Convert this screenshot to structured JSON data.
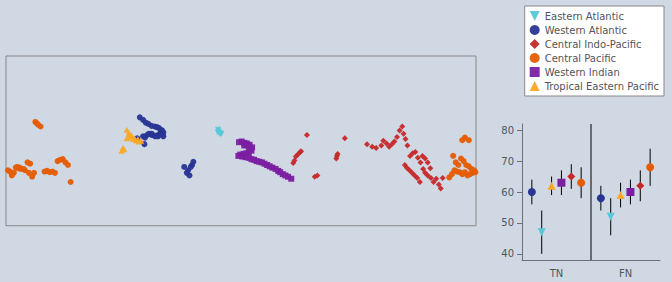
{
  "chart_data": [
    {
      "type": "scatter",
      "xlim": [
        -180,
        180
      ],
      "ylim": [
        -58,
        72
      ],
      "tick_labels": false,
      "grid": false,
      "legend": "upper right",
      "series": [
        {
          "name": "Eastern Atlantic",
          "color": "#56c8d8",
          "marker": "triangle_down",
          "values": [
            [
              -17.5,
              15.5
            ],
            [
              -17.0,
              14.0
            ],
            [
              -16.5,
              13.0
            ],
            [
              -16.0,
              12.0
            ],
            [
              -17.8,
              13.5
            ],
            [
              -15.0,
              12.5
            ]
          ]
        },
        {
          "name": "Western Atlantic",
          "color": "#283593",
          "marker": "circle",
          "values": [
            [
              -77.5,
              25.0
            ],
            [
              -75.0,
              23.0
            ],
            [
              -73.0,
              21.0
            ],
            [
              -71.0,
              20.0
            ],
            [
              -68.5,
              18.5
            ],
            [
              -66.0,
              18.0
            ],
            [
              -64.5,
              17.5
            ],
            [
              -63.0,
              17.0
            ],
            [
              -61.5,
              15.5
            ],
            [
              -60.5,
              15.0
            ],
            [
              -59.5,
              13.5
            ],
            [
              -75.0,
              10.5
            ],
            [
              -73.5,
              9.5
            ],
            [
              -72.0,
              11.5
            ],
            [
              -70.5,
              12.5
            ],
            [
              -68.5,
              11.5
            ],
            [
              -66.5,
              11.0
            ],
            [
              -64.5,
              11.0
            ],
            [
              -63.5,
              10.5
            ],
            [
              -62.5,
              12.0
            ],
            [
              -61.5,
              13.5
            ],
            [
              -60.0,
              12.0
            ],
            [
              -59.5,
              10.5
            ],
            [
              -43.5,
              -13.0
            ],
            [
              -40.5,
              -15.5
            ],
            [
              -41.5,
              -17.5
            ],
            [
              -39.5,
              -19.5
            ],
            [
              -38.5,
              -13.0
            ],
            [
              -37.5,
              -11.5
            ],
            [
              -36.5,
              -9.0
            ],
            [
              -79.5,
              9.0
            ],
            [
              -74.0,
              4.5
            ],
            [
              -68.5,
              12.5
            ],
            [
              -65.5,
              10.5
            ]
          ]
        },
        {
          "name": "Central Indo-Pacific",
          "color": "#c62828",
          "marker": "diamond",
          "values": [
            [
              40.0,
              -10.0
            ],
            [
              41.0,
              -8.0
            ],
            [
              42.0,
              -5.0
            ],
            [
              43.5,
              -3.5
            ],
            [
              45.0,
              -2.0
            ],
            [
              46.0,
              -1.0
            ],
            [
              50.5,
              11.5
            ],
            [
              56.5,
              -20.5
            ],
            [
              58.5,
              -19.5
            ],
            [
              73.0,
              -6.5
            ],
            [
              73.5,
              -4.5
            ],
            [
              74.0,
              -3.0
            ],
            [
              79.5,
              9.0
            ],
            [
              96.5,
              4.5
            ],
            [
              100.5,
              2.5
            ],
            [
              103.5,
              1.5
            ],
            [
              107.5,
              3.5
            ],
            [
              109.0,
              7.0
            ],
            [
              111.5,
              5.0
            ],
            [
              113.5,
              2.5
            ],
            [
              115.5,
              4.5
            ],
            [
              117.5,
              6.5
            ],
            [
              119.5,
              10.0
            ],
            [
              121.5,
              15.0
            ],
            [
              123.5,
              18.0
            ],
            [
              124.5,
              12.5
            ],
            [
              126.0,
              8.5
            ],
            [
              127.5,
              3.5
            ],
            [
              129.5,
              -4.5
            ],
            [
              131.5,
              -2.5
            ],
            [
              133.5,
              -1.5
            ],
            [
              135.5,
              -6.0
            ],
            [
              137.5,
              -9.5
            ],
            [
              139.5,
              -14.5
            ],
            [
              141.0,
              -17.5
            ],
            [
              143.0,
              -19.5
            ],
            [
              145.5,
              -21.5
            ],
            [
              147.5,
              -24.5
            ],
            [
              149.5,
              -22.0
            ],
            [
              151.5,
              -26.5
            ],
            [
              153.0,
              -29.5
            ],
            [
              154.5,
              -21.5
            ],
            [
              145.0,
              -14.0
            ],
            [
              143.0,
              -9.5
            ],
            [
              141.0,
              -6.5
            ],
            [
              139.0,
              -4.5
            ],
            [
              125.5,
              -11.5
            ],
            [
              127.0,
              -13.5
            ],
            [
              129.0,
              -15.5
            ],
            [
              131.0,
              -17.5
            ],
            [
              133.0,
              -19.5
            ],
            [
              135.0,
              -21.5
            ],
            [
              137.0,
              -24.5
            ]
          ]
        },
        {
          "name": "Central Pacific",
          "color": "#e65c00",
          "marker": "circle",
          "values": [
            [
              159.5,
              -21.0
            ],
            [
              161.5,
              -18.5
            ],
            [
              163.5,
              -15.5
            ],
            [
              165.5,
              -16.5
            ],
            [
              167.5,
              -17.0
            ],
            [
              169.5,
              -18.5
            ],
            [
              171.5,
              -17.0
            ],
            [
              173.5,
              -19.5
            ],
            [
              175.5,
              -18.5
            ],
            [
              177.5,
              -17.5
            ],
            [
              179.5,
              -17.0
            ],
            [
              -178.5,
              -15.5
            ],
            [
              -175.5,
              -19.5
            ],
            [
              -172.5,
              -13.5
            ],
            [
              -170.5,
              -14.0
            ],
            [
              -168.5,
              -14.5
            ],
            [
              -165.5,
              -15.5
            ],
            [
              -162.5,
              -17.5
            ],
            [
              -160.0,
              -20.5
            ],
            [
              -158.5,
              -17.5
            ],
            [
              -156.5,
              20.5
            ],
            [
              -157.5,
              21.5
            ],
            [
              -155.5,
              19.5
            ],
            [
              -153.5,
              18.0
            ],
            [
              -150.5,
              -16.5
            ],
            [
              -148.5,
              -16.0
            ],
            [
              -146.5,
              -17.0
            ],
            [
              -144.5,
              -16.5
            ],
            [
              -142.5,
              -17.5
            ],
            [
              -140.5,
              -8.5
            ],
            [
              -138.5,
              -7.5
            ],
            [
              -136.5,
              -7.0
            ],
            [
              -134.5,
              -9.5
            ],
            [
              -132.5,
              -11.5
            ],
            [
              -130.5,
              -24.5
            ],
            [
              164.5,
              -9.5
            ],
            [
              166.5,
              -11.5
            ],
            [
              168.5,
              -6.5
            ],
            [
              170.5,
              -8.5
            ],
            [
              172.5,
              -11.5
            ],
            [
              174.5,
              -12.5
            ],
            [
              176.5,
              -14.5
            ],
            [
              178.5,
              -15.5
            ],
            [
              -177.0,
              -16.5
            ],
            [
              -174.0,
              -17.5
            ],
            [
              -171.5,
              -13.0
            ],
            [
              -169.5,
              -13.5
            ],
            [
              -166.5,
              -14.5
            ],
            [
              -163.5,
              -9.5
            ],
            [
              -161.5,
              -10.5
            ],
            [
              162.5,
              -4.5
            ],
            [
              169.5,
              7.5
            ],
            [
              171.5,
              9.5
            ],
            [
              174.5,
              7.5
            ]
          ]
        },
        {
          "name": "Western Indian",
          "color": "#7b1fa2",
          "marker": "square",
          "values": [
            [
              -1.5,
              6.0
            ],
            [
              0.5,
              6.5
            ],
            [
              2.5,
              5.5
            ],
            [
              4.5,
              5.0
            ],
            [
              6.5,
              4.0
            ],
            [
              2.5,
              3.5
            ],
            [
              4.5,
              3.5
            ],
            [
              6.5,
              2.5
            ],
            [
              8.5,
              2.0
            ],
            [
              8.0,
              -0.5
            ],
            [
              6.0,
              -1.5
            ],
            [
              4.0,
              -2.5
            ],
            [
              2.0,
              -3.0
            ],
            [
              -0.5,
              -3.5
            ],
            [
              -2.0,
              -4.5
            ],
            [
              1.0,
              -5.0
            ],
            [
              3.5,
              -5.5
            ],
            [
              6.0,
              -6.0
            ],
            [
              8.0,
              -7.0
            ],
            [
              10.0,
              -7.5
            ],
            [
              12.0,
              -8.5
            ],
            [
              14.0,
              -9.0
            ],
            [
              16.0,
              -9.5
            ],
            [
              18.0,
              -10.5
            ],
            [
              20.0,
              -11.5
            ],
            [
              22.0,
              -12.5
            ],
            [
              24.0,
              -13.5
            ],
            [
              26.5,
              -14.5
            ],
            [
              28.5,
              -16.0
            ],
            [
              30.0,
              -17.0
            ],
            [
              32.0,
              -18.5
            ],
            [
              34.0,
              -19.5
            ],
            [
              36.0,
              -20.5
            ],
            [
              38.5,
              -22.0
            ]
          ]
        },
        {
          "name": "Tropical Eastern Pacific",
          "color": "#f9a825",
          "marker": "triangle",
          "values": [
            [
              -87.5,
              15.5
            ],
            [
              -86.0,
              13.5
            ],
            [
              -84.0,
              11.5
            ],
            [
              -81.5,
              9.0
            ],
            [
              -79.0,
              8.5
            ],
            [
              -76.5,
              7.0
            ],
            [
              -85.5,
              12.0
            ],
            [
              -84.5,
              10.5
            ],
            [
              -82.5,
              8.5
            ],
            [
              -80.5,
              7.5
            ],
            [
              -78.5,
              6.5
            ],
            [
              -87.5,
              9.0
            ],
            [
              -85.0,
              9.5
            ],
            [
              -89.5,
              0.5
            ],
            [
              -91.5,
              -0.5
            ],
            [
              -90.5,
              1.5
            ]
          ]
        }
      ]
    },
    {
      "type": "errorbar",
      "categories": [
        "TN",
        "FN"
      ],
      "ylim": [
        38,
        82
      ],
      "yticks": [
        40,
        50,
        60,
        70,
        80
      ],
      "grid": false,
      "series": [
        {
          "color": "#283593",
          "marker": "circle",
          "values": [
            60,
            58
          ],
          "errors": [
            4,
            4
          ]
        },
        {
          "color": "#56c8d8",
          "marker": "triangle_down",
          "values": [
            47,
            52
          ],
          "errors": [
            7,
            6
          ]
        },
        {
          "color": "#f9a825",
          "marker": "triangle",
          "values": [
            62,
            59
          ],
          "errors": [
            3,
            4
          ]
        },
        {
          "color": "#7b1fa2",
          "marker": "square",
          "values": [
            63,
            60
          ],
          "errors": [
            4,
            4
          ]
        },
        {
          "color": "#c62828",
          "marker": "diamond",
          "values": [
            65,
            62
          ],
          "errors": [
            4,
            5
          ]
        },
        {
          "color": "#e65c00",
          "marker": "circle",
          "values": [
            63,
            68
          ],
          "errors": [
            5,
            6
          ]
        }
      ]
    }
  ]
}
